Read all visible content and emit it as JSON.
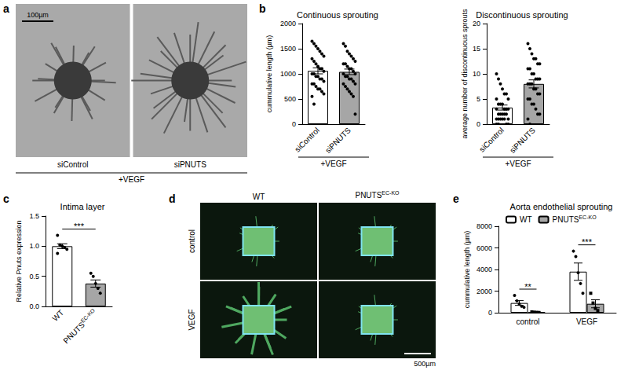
{
  "image_panels": [
    {
      "panel": "a",
      "scale_bar": "100µm",
      "columns": [
        "siControl",
        "siPNUTS"
      ],
      "footer": "+VEGF"
    },
    {
      "panel": "d",
      "scale_bar": "500µm",
      "columns": [
        "WT",
        "PNUTSEC-KO"
      ],
      "rows": [
        "control",
        "VEGF"
      ],
      "superscript": "EC-KO"
    }
  ],
  "chart_data": [
    {
      "panel": "b",
      "type": "bar",
      "title": "Continuous sprouting",
      "y_label": "cummulative length (µm)",
      "x_annotation": "+VEGF",
      "categories": [
        "siControl",
        "siPNUTS"
      ],
      "values": [
        1060,
        1040
      ],
      "errors": [
        60,
        55
      ],
      "colors": [
        "#ffffff",
        "#a6a6a6"
      ],
      "marker": "circle",
      "points": [
        [
          1650,
          1600,
          1550,
          1500,
          1450,
          1400,
          1350,
          1300,
          1250,
          1200,
          1150,
          1100,
          1100,
          1050,
          1000,
          1000,
          950,
          950,
          900,
          900,
          850,
          800,
          800,
          750,
          700,
          700,
          650,
          600,
          550,
          400
        ],
        [
          1600,
          1550,
          1450,
          1400,
          1350,
          1300,
          1250,
          1200,
          1200,
          1150,
          1100,
          1100,
          1050,
          1000,
          1000,
          950,
          950,
          900,
          900,
          850,
          800,
          800,
          750,
          700,
          650,
          600,
          550,
          200
        ]
      ],
      "ylim": [
        0,
        2000
      ],
      "yticks": [
        0,
        500,
        1000,
        1500,
        2000
      ],
      "grid": false
    },
    {
      "panel": "b",
      "type": "bar",
      "title": "Discontinuous sprouting",
      "y_label": "average number of discontinuous sprouts",
      "x_annotation": "+VEGF",
      "categories": [
        "siControl",
        "siPNUTS"
      ],
      "values": [
        3.3,
        8.0
      ],
      "errors": [
        0.5,
        0.8
      ],
      "colors": [
        "#ffffff",
        "#a6a6a6"
      ],
      "marker": "circle",
      "points": [
        [
          10,
          9,
          8,
          7,
          6,
          6,
          5,
          5,
          4,
          4,
          4,
          3,
          3,
          3,
          3,
          2,
          2,
          2,
          2,
          2,
          1,
          1,
          1,
          1,
          1,
          1,
          0,
          0,
          0,
          0
        ],
        [
          16,
          15,
          14,
          13,
          13,
          12,
          12,
          11,
          11,
          10,
          10,
          9,
          9,
          9,
          8,
          8,
          8,
          7,
          7,
          6,
          6,
          5,
          5,
          4,
          4,
          3,
          2,
          2,
          1,
          0
        ]
      ],
      "ylim": [
        0,
        20
      ],
      "yticks": [
        0,
        5,
        10,
        15,
        20
      ],
      "grid": false
    },
    {
      "panel": "c",
      "type": "bar",
      "title": "Intima layer",
      "y_label": "Relative Pnuts expression",
      "superscript": "EC-KO",
      "categories": [
        "WT",
        "PNUTSEC-KO"
      ],
      "values": [
        1.0,
        0.38
      ],
      "errors": [
        0.04,
        0.06
      ],
      "colors": [
        "#ffffff",
        "#a6a6a6"
      ],
      "marker": "circle",
      "points": [
        [
          1.18,
          1.02,
          1.0,
          0.98,
          0.95,
          0.88
        ],
        [
          0.55,
          0.5,
          0.38,
          0.3,
          0.22
        ]
      ],
      "significance": [
        {
          "categories": [
            "WT",
            "PNUTSEC-KO"
          ],
          "label": "***"
        }
      ],
      "ylim": [
        0,
        1.5
      ],
      "yticks": [
        {
          "value": 0,
          "label": "0.0"
        },
        0.5,
        {
          "value": 1,
          "label": "1.0"
        },
        1.5
      ],
      "grid": false
    },
    {
      "panel": "e",
      "type": "bar",
      "title": "Aorta endothelial sprouting",
      "y_label": "cummulative length (µm)",
      "superscript": "EC-KO",
      "categories": [
        "control",
        "VEGF"
      ],
      "legend": "top-left",
      "series": [
        {
          "name": "WT",
          "color": "#ffffff",
          "marker": "circle",
          "values": [
            900,
            3800
          ],
          "errors": [
            220,
            800
          ],
          "points": [
            [
              1600,
              1100,
              800,
              600,
              500
            ],
            [
              5700,
              5200,
              3700,
              2700,
              1800
            ]
          ]
        },
        {
          "name": "PNUTSEC-KO",
          "color": "#a6a6a6",
          "marker": "square",
          "values": [
            45,
            825
          ],
          "errors": [
            15,
            370
          ],
          "points": [
            [
              80,
              50,
              30,
              20
            ],
            [
              1800,
              900,
              400,
              200
            ]
          ]
        }
      ],
      "significance": [
        {
          "categories": [
            "control"
          ],
          "label": "**"
        },
        {
          "categories": [
            "VEGF"
          ],
          "label": "***"
        }
      ],
      "ylim": [
        0,
        8000
      ],
      "yticks": [
        0,
        2000,
        4000,
        6000,
        8000
      ],
      "grid": false
    }
  ]
}
